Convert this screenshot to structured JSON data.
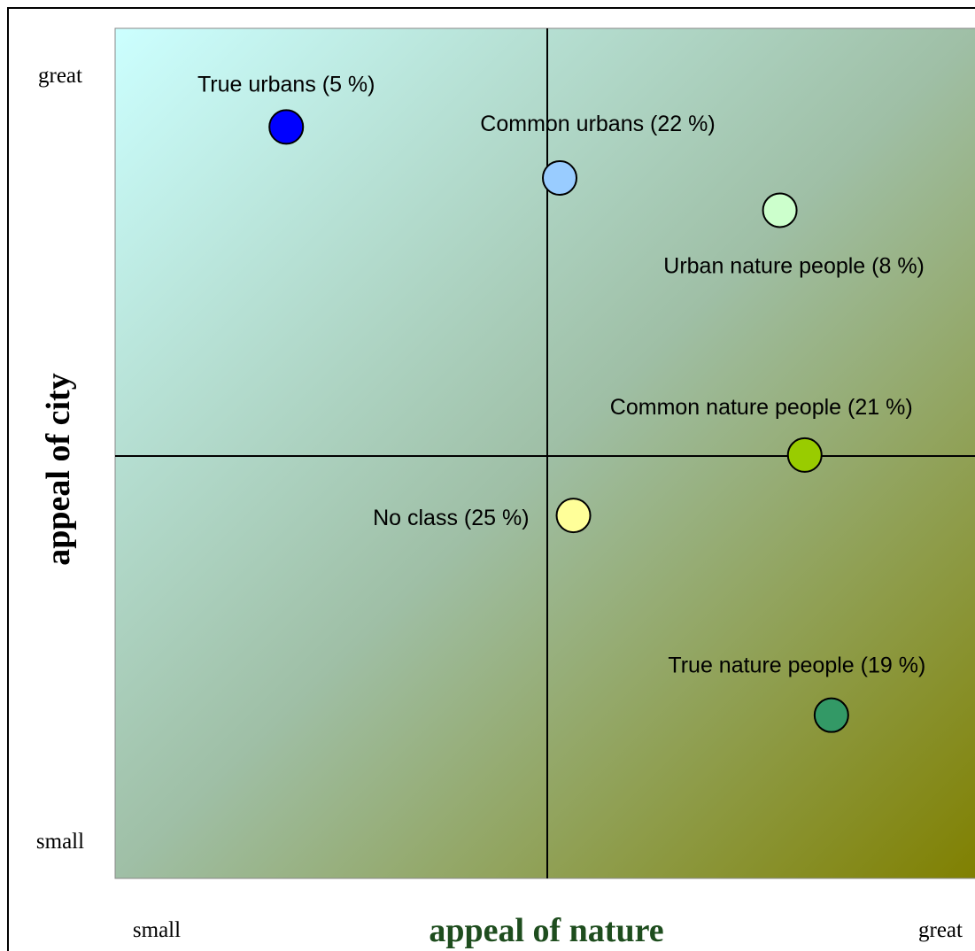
{
  "chart_data": {
    "type": "scatter",
    "x_label": "appeal of nature",
    "y_label": "appeal of city",
    "xlim": [
      0,
      1
    ],
    "ylim": [
      0,
      1
    ],
    "xticks": [
      {
        "value": 0,
        "label": "small"
      },
      {
        "value": 1,
        "label": "great"
      }
    ],
    "yticks": [
      {
        "value": 0,
        "label": "small"
      },
      {
        "value": 1,
        "label": "great"
      }
    ],
    "series": [
      {
        "name": "True urbans (5 %)",
        "color": "#0000ff",
        "x": [
          0.199
        ],
        "values": [
          0.884
        ]
      },
      {
        "name": "Common urbans (22 %)",
        "color": "#99ccff",
        "x": [
          0.517
        ],
        "values": [
          0.824
        ]
      },
      {
        "name": "Urban nature people (8 %)",
        "color": "#ccffcc",
        "x": [
          0.773
        ],
        "values": [
          0.786
        ]
      },
      {
        "name": "Common nature people (21 %)",
        "color": "#99cc00",
        "x": [
          0.802
        ],
        "values": [
          0.498
        ]
      },
      {
        "name": "No class (25 %)",
        "color": "#ffff99",
        "x": [
          0.533
        ],
        "values": [
          0.427
        ]
      },
      {
        "name": "True nature people (19 %)",
        "color": "#339966",
        "x": [
          0.833
        ],
        "values": [
          0.192
        ]
      }
    ]
  }
}
